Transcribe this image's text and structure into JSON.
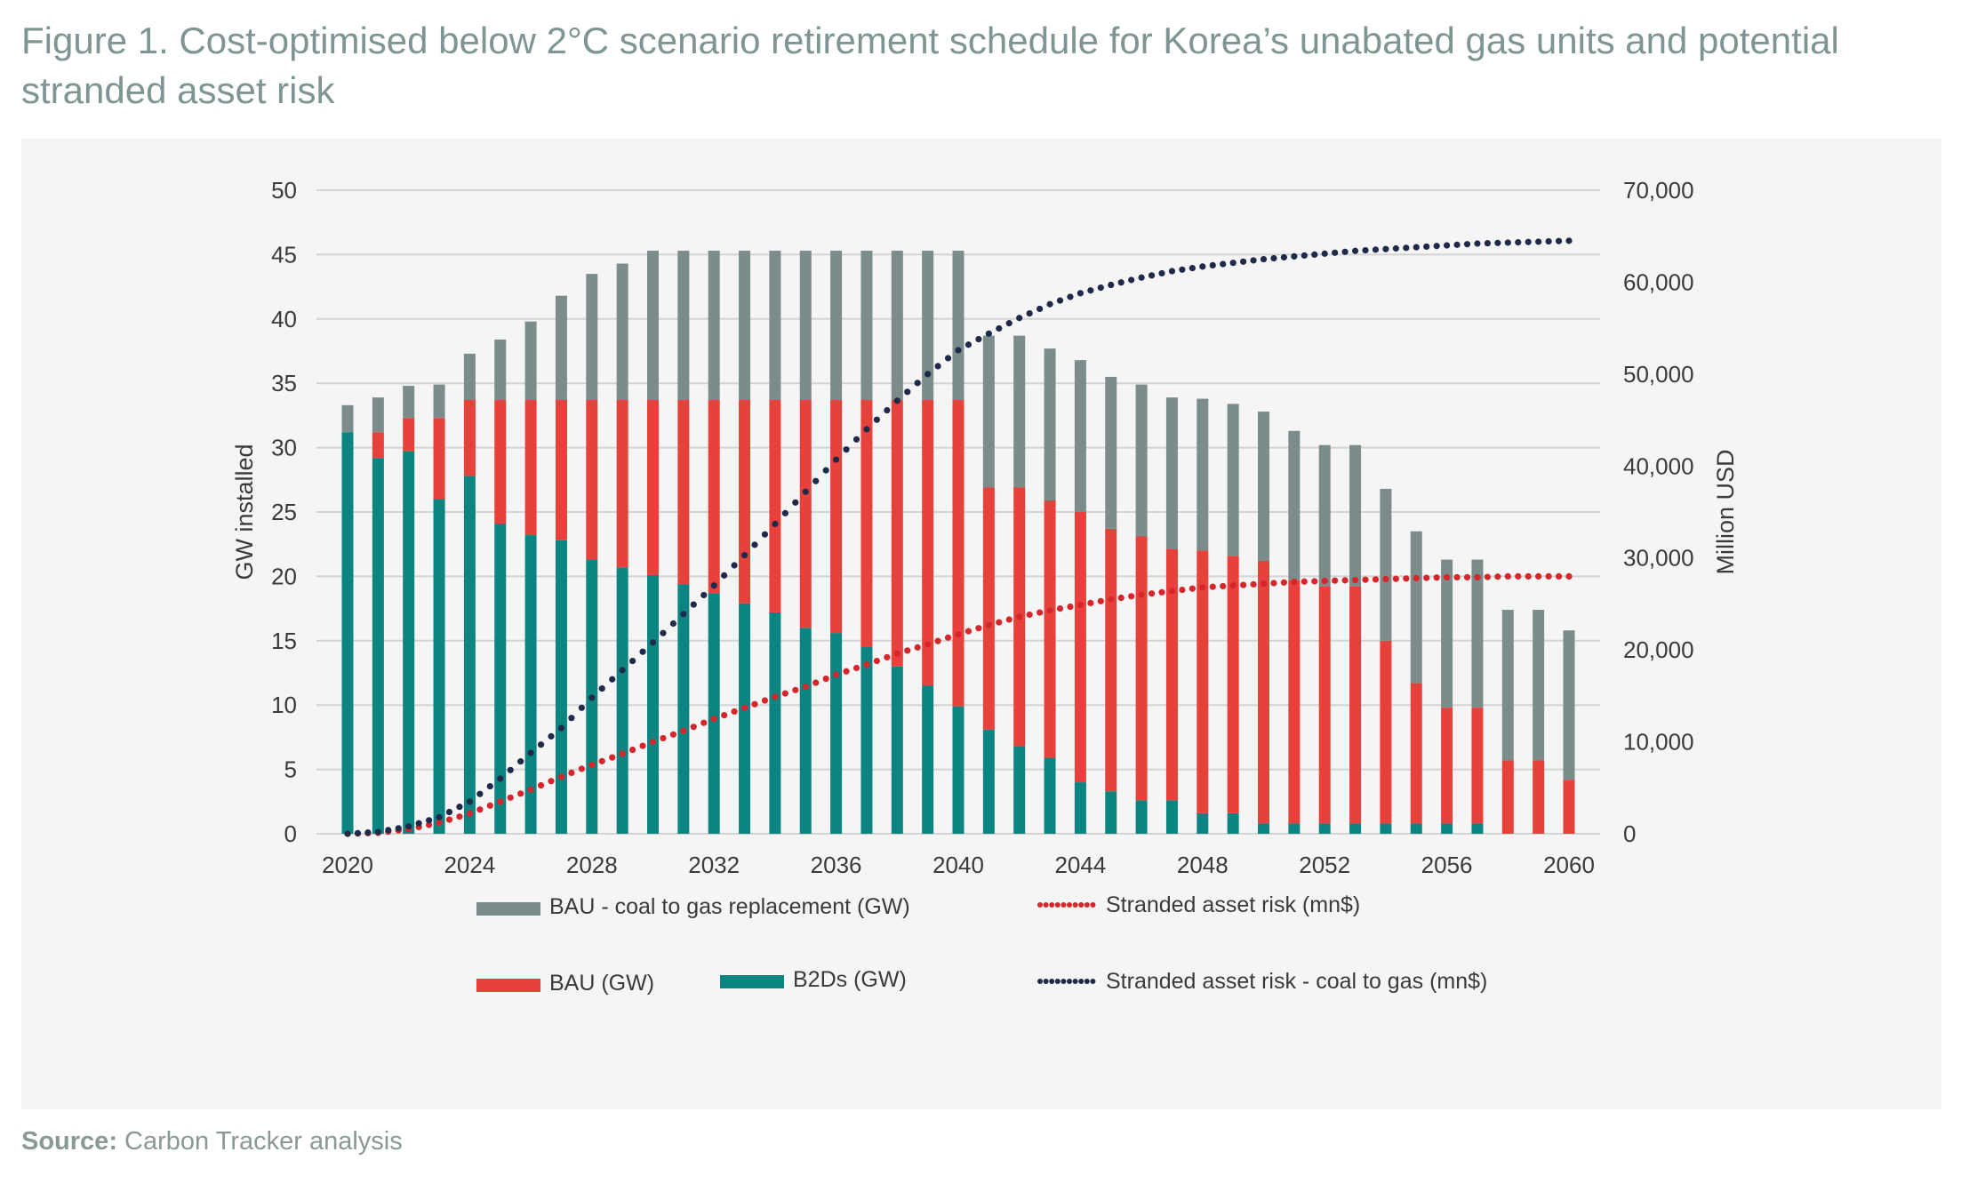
{
  "figure": {
    "label": "Figure 1.",
    "title": "Cost-optimised below 2°C scenario retirement schedule for Korea’s unabated gas units and potential stranded asset risk"
  },
  "source": {
    "label": "Source:",
    "text": "Carbon Tracker analysis"
  },
  "colors": {
    "coal_to_gas": "#7b8c8a",
    "bau": "#e8403a",
    "b2ds": "#0b8482",
    "stranded": "#d7262b",
    "stranded_coal": "#1f2a4a",
    "grid": "#d4d4d4",
    "axis_text": "#3a3a3a",
    "panel": "#f5f5f5"
  },
  "chart_data": {
    "type": "bar",
    "stacked": true,
    "ylabel": "GW installed",
    "y2label": "Million USD",
    "ylim": [
      0,
      50
    ],
    "y2lim": [
      0,
      70000
    ],
    "yticks": [
      "0",
      "5",
      "10",
      "15",
      "20",
      "25",
      "30",
      "35",
      "40",
      "45",
      "50"
    ],
    "y2ticks": [
      "0",
      "10,000",
      "20,000",
      "30,000",
      "40,000",
      "50,000",
      "60,000",
      "70,000"
    ],
    "x_tick_labels": [
      "2020",
      "2024",
      "2028",
      "2032",
      "2036",
      "2040",
      "2044",
      "2048",
      "2052",
      "2056",
      "2060"
    ],
    "grid": true,
    "legend_position": "bottom",
    "x": [
      2020,
      2021,
      2022,
      2023,
      2024,
      2025,
      2026,
      2027,
      2028,
      2029,
      2030,
      2031,
      2032,
      2033,
      2034,
      2035,
      2036,
      2037,
      2038,
      2039,
      2040,
      2041,
      2042,
      2043,
      2044,
      2045,
      2046,
      2047,
      2048,
      2049,
      2050,
      2051,
      2052,
      2053,
      2054,
      2055,
      2056,
      2057,
      2058,
      2059,
      2060
    ],
    "series": [
      {
        "name": "B2Ds (GW)",
        "kind": "bar",
        "axis": "left",
        "color": "#0b8482",
        "values": [
          31.2,
          29.2,
          29.7,
          26,
          27.8,
          24.1,
          23.2,
          22.8,
          21.3,
          20.7,
          20.1,
          19.4,
          18.7,
          17.9,
          17.2,
          16,
          15.6,
          14.5,
          13,
          11.5,
          9.9,
          8.1,
          6.8,
          5.9,
          4,
          3.3,
          2.6,
          2.6,
          1.6,
          1.6,
          0.8,
          0.8,
          0.8,
          0.8,
          0.8,
          0.8,
          0.8,
          0.8,
          0,
          0,
          0
        ]
      },
      {
        "name": "BAU (GW)",
        "kind": "bar",
        "axis": "left",
        "color": "#e8403a",
        "values": [
          0,
          2,
          2.6,
          6.3,
          5.9,
          9.6,
          10.5,
          10.9,
          12.4,
          13,
          13.6,
          14.3,
          15,
          15.8,
          16.5,
          17.7,
          18.1,
          19.2,
          20.7,
          22.2,
          23.8,
          18.8,
          20.1,
          20,
          21,
          20.4,
          20.5,
          19.5,
          20.4,
          20,
          20.4,
          18.9,
          18.4,
          18.4,
          14.2,
          10.9,
          9,
          9,
          5.7,
          5.7,
          4.2
        ]
      },
      {
        "name": "BAU - coal to gas replacement (GW)",
        "kind": "bar",
        "axis": "left",
        "color": "#7b8c8a",
        "values": [
          2.1,
          2.7,
          2.5,
          2.6,
          3.6,
          4.7,
          6.1,
          8.1,
          9.8,
          10.6,
          11.6,
          11.6,
          11.6,
          11.6,
          11.6,
          11.6,
          11.6,
          11.6,
          11.6,
          11.6,
          11.6,
          11.8,
          11.8,
          11.8,
          11.8,
          11.8,
          11.8,
          11.8,
          11.8,
          11.8,
          11.6,
          11.6,
          11,
          11,
          11.8,
          11.8,
          11.5,
          11.5,
          11.7,
          11.7,
          11.6
        ]
      },
      {
        "name": "Stranded asset risk (mn$)",
        "kind": "line",
        "style": "dotted",
        "axis": "right",
        "color": "#d7262b",
        "values": [
          0,
          100,
          500,
          1200,
          2200,
          3500,
          4800,
          6200,
          7500,
          8700,
          10000,
          11200,
          12500,
          13700,
          14900,
          16000,
          17300,
          18400,
          19600,
          20600,
          21700,
          22700,
          23600,
          24300,
          24900,
          25500,
          26000,
          26400,
          26800,
          27000,
          27200,
          27400,
          27500,
          27600,
          27700,
          27800,
          27900,
          27900,
          28000,
          28000,
          28000
        ]
      },
      {
        "name": "Stranded asset risk - coal to gas (mn$)",
        "kind": "line",
        "style": "dotted",
        "axis": "right",
        "color": "#1f2a4a",
        "values": [
          0,
          200,
          800,
          1800,
          3500,
          6000,
          8800,
          11500,
          14800,
          17800,
          20800,
          23900,
          27000,
          30300,
          33700,
          37200,
          40700,
          44000,
          47100,
          50000,
          52600,
          54400,
          56100,
          57600,
          58800,
          59700,
          60500,
          61200,
          61700,
          62100,
          62500,
          62800,
          63100,
          63400,
          63600,
          63800,
          64000,
          64200,
          64300,
          64400,
          64500
        ]
      }
    ]
  }
}
